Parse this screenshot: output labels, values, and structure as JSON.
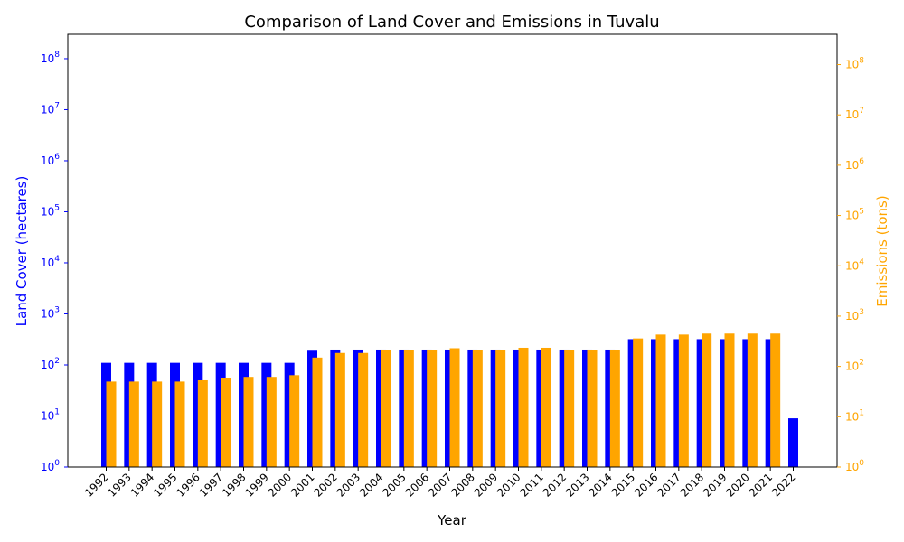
{
  "chart_data": {
    "type": "bar",
    "title": "Comparison of Land Cover and Emissions in Tuvalu",
    "xlabel": "Year",
    "categories": [
      "1992",
      "1993",
      "1994",
      "1995",
      "1996",
      "1997",
      "1998",
      "1999",
      "2000",
      "2001",
      "2002",
      "2003",
      "2004",
      "2005",
      "2006",
      "2007",
      "2008",
      "2009",
      "2010",
      "2011",
      "2012",
      "2013",
      "2014",
      "2015",
      "2016",
      "2017",
      "2018",
      "2019",
      "2020",
      "2021",
      "2022"
    ],
    "y_left": {
      "label": "Land Cover (hectares)",
      "scale": "log",
      "ylim": [
        1,
        300000000
      ],
      "ticks": [
        1,
        10,
        100,
        1000,
        10000,
        100000,
        1000000,
        10000000,
        100000000
      ],
      "tick_labels": [
        [
          "10",
          "0"
        ],
        [
          "10",
          "1"
        ],
        [
          "10",
          "2"
        ],
        [
          "10",
          "3"
        ],
        [
          "10",
          "4"
        ],
        [
          "10",
          "5"
        ],
        [
          "10",
          "6"
        ],
        [
          "10",
          "7"
        ],
        [
          "10",
          "8"
        ]
      ],
      "color": "#0000ff"
    },
    "y_right": {
      "label": "Emissions (tons)",
      "scale": "log",
      "ylim": [
        1,
        400000000
      ],
      "ticks": [
        1,
        10,
        100,
        1000,
        10000,
        100000,
        1000000,
        10000000,
        100000000
      ],
      "tick_labels": [
        [
          "10",
          "0"
        ],
        [
          "10",
          "1"
        ],
        [
          "10",
          "2"
        ],
        [
          "10",
          "3"
        ],
        [
          "10",
          "4"
        ],
        [
          "10",
          "5"
        ],
        [
          "10",
          "6"
        ],
        [
          "10",
          "7"
        ],
        [
          "10",
          "8"
        ]
      ],
      "color": "#ffa500"
    },
    "series": [
      {
        "axis": "left",
        "color": "#0000ff",
        "values": [
          110,
          110,
          110,
          110,
          110,
          110,
          110,
          110,
          110,
          190,
          200,
          200,
          200,
          200,
          200,
          200,
          200,
          200,
          200,
          200,
          200,
          200,
          200,
          320,
          320,
          320,
          320,
          320,
          320,
          320,
          9
        ]
      },
      {
        "axis": "right",
        "color": "#ffa500",
        "values": [
          50,
          50,
          50,
          50,
          53,
          58,
          62,
          62,
          67,
          150,
          185,
          185,
          210,
          210,
          210,
          230,
          215,
          215,
          235,
          235,
          215,
          215,
          215,
          360,
          430,
          430,
          450,
          450,
          450,
          450,
          null
        ]
      }
    ]
  }
}
